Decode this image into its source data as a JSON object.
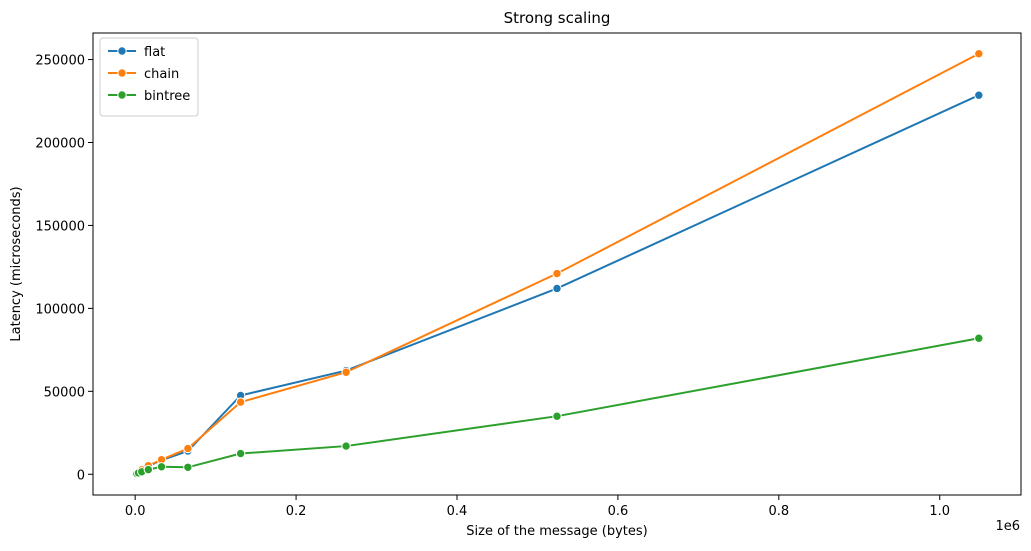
{
  "chart_data": {
    "type": "line",
    "title": "Strong scaling",
    "xlabel": "Size of the message (bytes)",
    "ylabel": "Latency (microseconds)",
    "x_offset_label": "1e6",
    "xlim": [
      -0.0524,
      1.101
    ],
    "ylim": [
      -12500,
      266000
    ],
    "x_scale": 1000000,
    "x_ticks": [
      0.0,
      0.2,
      0.4,
      0.6,
      0.8,
      1.0
    ],
    "x_tick_labels": [
      "0.0",
      "0.2",
      "0.4",
      "0.6",
      "0.8",
      "1.0"
    ],
    "y_ticks": [
      0,
      50000,
      100000,
      150000,
      200000,
      250000
    ],
    "y_tick_labels": [
      "0",
      "50000",
      "100000",
      "150000",
      "200000",
      "250000"
    ],
    "grid": false,
    "legend_position": "top-left",
    "x": [
      1024,
      2048,
      4096,
      8192,
      16384,
      32768,
      65536,
      131072,
      262144,
      524288,
      1048576
    ],
    "series": [
      {
        "name": "flat",
        "color": "#1f77b4",
        "values": [
          300,
          600,
          1200,
          2500,
          5000,
          8500,
          14000,
          47500,
          62500,
          112000,
          228500
        ]
      },
      {
        "name": "chain",
        "color": "#ff7f0e",
        "values": [
          350,
          700,
          1400,
          2700,
          5200,
          8800,
          15500,
          43500,
          61500,
          121000,
          253500
        ]
      },
      {
        "name": "bintree",
        "color": "#2ca02c",
        "values": [
          200,
          400,
          800,
          1500,
          2800,
          4500,
          4200,
          12500,
          17000,
          35000,
          82000
        ]
      }
    ]
  }
}
